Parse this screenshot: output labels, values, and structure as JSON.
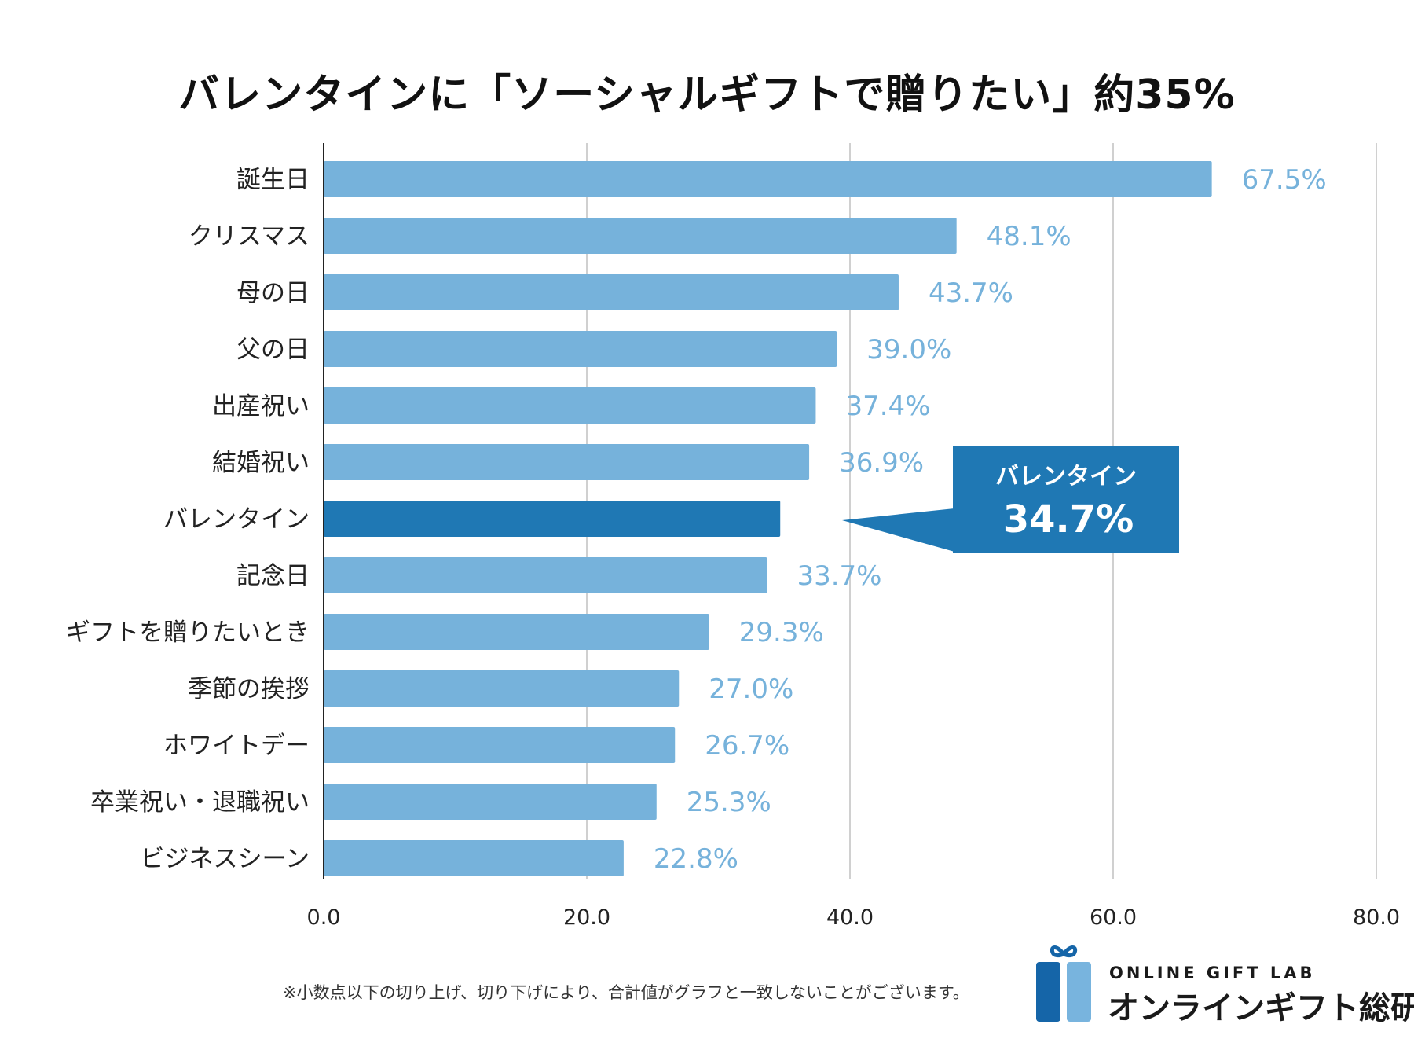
{
  "chart_data": {
    "type": "bar",
    "orientation": "horizontal",
    "title": "バレンタインに「ソーシャルギフトで贈りたい」約35%",
    "categories": [
      "誕生日",
      "クリスマス",
      "母の日",
      "父の日",
      "出産祝い",
      "結婚祝い",
      "バレンタイン",
      "記念日",
      "ギフトを贈りたいとき",
      "季節の挨拶",
      "ホワイトデー",
      "卒業祝い・退職祝い",
      "ビジネスシーン"
    ],
    "values": [
      67.5,
      48.1,
      43.7,
      39.0,
      37.4,
      36.9,
      34.7,
      33.7,
      29.3,
      27.0,
      26.7,
      25.3,
      22.8
    ],
    "value_labels": [
      "67.5%",
      "48.1%",
      "43.7%",
      "39.0%",
      "37.4%",
      "36.9%",
      "34.7%",
      "33.7%",
      "29.3%",
      "27.0%",
      "26.7%",
      "25.3%",
      "22.8%"
    ],
    "highlight_index": 6,
    "xlim": [
      0,
      80
    ],
    "x_ticks": [
      0,
      20,
      40,
      60,
      80
    ],
    "x_tick_labels": [
      "0.0",
      "20.0",
      "40.0",
      "60.0",
      "80.0"
    ],
    "grid": true,
    "callout": {
      "label": "バレンタイン",
      "value": "34.7%"
    },
    "colors": {
      "bar": "#76b2db",
      "highlight": "#1f78b4",
      "value_label": "#76b2db",
      "callout_bg": "#1f78b4",
      "grid": "#d0d0d0",
      "axis": "#222222"
    }
  },
  "footnote": "※小数点以下の切り上げ、切り下げにより、合計値がグラフと一致しないことがございます。",
  "logo": {
    "en": "ONLINE GIFT LAB",
    "ja": "オンラインギフト総研",
    "icon": "gift-box-icon",
    "colors": {
      "dark": "#1565a8",
      "light": "#78b4de"
    }
  }
}
